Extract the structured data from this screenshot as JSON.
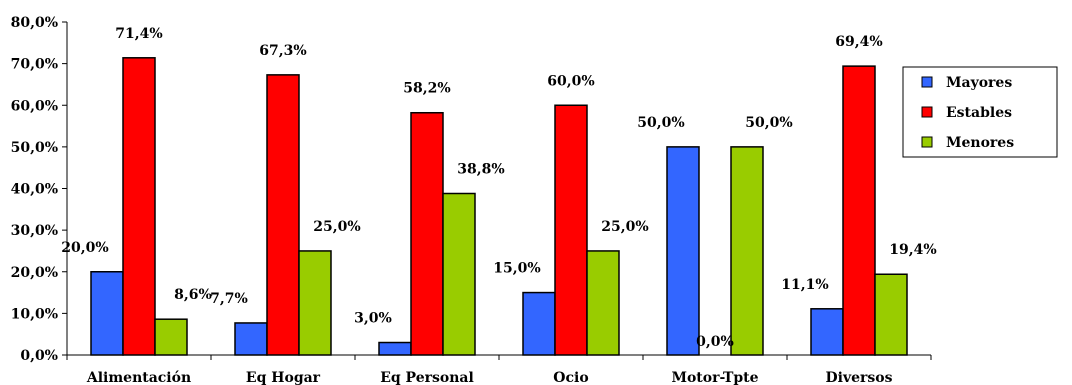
{
  "chart_data": {
    "type": "bar",
    "categories": [
      "Alimentación",
      "Eq Hogar",
      "Eq Personal",
      "Ocio",
      "Motor-Tpte",
      "Diversos"
    ],
    "series": [
      {
        "name": "Mayores",
        "color": "#3366ff",
        "values": [
          20.0,
          7.7,
          3.0,
          15.0,
          50.0,
          11.1
        ],
        "labels": [
          "20,0%",
          "7,7%",
          "3,0%",
          "15,0%",
          "50,0%",
          "11,1%"
        ]
      },
      {
        "name": "Estables",
        "color": "#ff0000",
        "values": [
          71.4,
          67.3,
          58.2,
          60.0,
          0.0,
          69.4
        ],
        "labels": [
          "71,4%",
          "67,3%",
          "58,2%",
          "60,0%",
          "0,0%",
          "69,4%"
        ]
      },
      {
        "name": "Menores",
        "color": "#99cc00",
        "values": [
          8.6,
          25.0,
          38.8,
          25.0,
          50.0,
          19.4
        ],
        "labels": [
          "8,6%",
          "25,0%",
          "38,8%",
          "25,0%",
          "50,0%",
          "19,4%"
        ]
      }
    ],
    "yticks": [
      0,
      10,
      20,
      30,
      40,
      50,
      60,
      70,
      80
    ],
    "ytick_labels": [
      "0,0%",
      "10,0%",
      "20,0%",
      "30,0%",
      "40,0%",
      "50,0%",
      "60,0%",
      "70,0%",
      "80,0%"
    ],
    "ylim": [
      0,
      80
    ],
    "grid": false,
    "legend_position": "right"
  }
}
